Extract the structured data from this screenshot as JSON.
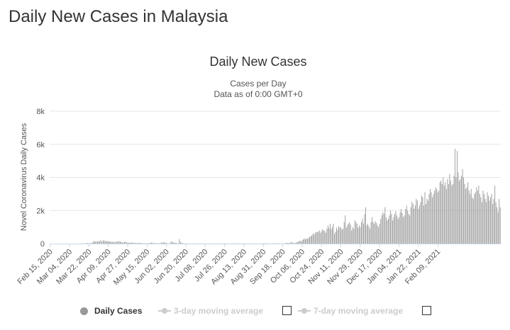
{
  "page": {
    "title": "Daily New Cases in Malaysia"
  },
  "legend": {
    "items": [
      {
        "label": "Daily Cases",
        "color": "#999999",
        "active": true
      },
      {
        "label": "3-day moving average",
        "color": "#cccccc",
        "active": false
      },
      {
        "label": "7-day moving average",
        "color": "#cccccc",
        "active": false
      }
    ]
  },
  "chart_data": {
    "type": "bar",
    "title": "Daily New Cases",
    "subtitle": [
      "Cases per Day",
      "Data as of 0:00 GMT+0"
    ],
    "ylabel": "Novel Coronavirus Daily Cases",
    "xlabel": "",
    "ylim": [
      0,
      8000
    ],
    "yticks": [
      0,
      2000,
      4000,
      6000,
      8000
    ],
    "ytick_labels": [
      "0",
      "2k",
      "4k",
      "6k",
      "8k"
    ],
    "grid": true,
    "bar_color": "#999999",
    "grid_color": "#e6e6e6",
    "x_start": "Feb 15, 2020",
    "x_end": "Feb 21, 2021",
    "xtick_labels": [
      "Feb 15, 2020",
      "Mar 04, 2020",
      "Mar 22, 2020",
      "Apr 09, 2020",
      "Apr 27, 2020",
      "May 15, 2020",
      "Jun 02, 2020",
      "Jun 20, 2020",
      "Jul 08, 2020",
      "Jul 26, 2020",
      "Aug 13, 2020",
      "Aug 31, 2020",
      "Sep 18, 2020",
      "Oct 06, 2020",
      "Oct 24, 2020",
      "Nov 11, 2020",
      "Nov 29, 2020",
      "Dec 17, 2020",
      "Jan 04, 2021",
      "Jan 22, 2021",
      "Feb 09, 2021"
    ],
    "values": [
      0,
      0,
      0,
      0,
      0,
      0,
      0,
      0,
      0,
      0,
      0,
      0,
      0,
      0,
      0,
      0,
      0,
      0,
      0,
      0,
      0,
      0,
      0,
      0,
      0,
      0,
      0,
      0,
      7,
      0,
      2,
      14,
      10,
      5,
      25,
      45,
      3,
      30,
      16,
      53,
      125,
      150,
      110,
      130,
      140,
      153,
      123,
      212,
      106,
      172,
      235,
      130,
      159,
      150,
      140,
      142,
      117,
      100,
      105,
      120,
      73,
      90,
      140,
      110,
      150,
      130,
      95,
      60,
      87,
      80,
      110,
      70,
      60,
      50,
      40,
      57,
      80,
      40,
      30,
      50,
      30,
      45,
      20,
      50,
      40,
      30,
      25,
      15,
      20,
      10,
      15,
      20,
      30,
      40,
      60,
      50,
      40,
      20,
      30,
      20,
      15,
      10,
      37,
      50,
      60,
      70,
      90,
      50,
      30,
      20,
      10,
      5,
      100,
      120,
      80,
      50,
      60,
      30,
      20,
      10,
      277,
      100,
      50,
      25,
      15,
      10,
      8,
      5,
      6,
      10,
      8,
      5,
      7,
      10,
      5,
      8,
      6,
      5,
      10,
      8,
      5,
      6,
      7,
      5,
      4,
      5,
      6,
      7,
      8,
      6,
      5,
      4,
      3,
      5,
      6,
      7,
      5,
      4,
      6,
      8,
      10,
      12,
      15,
      10,
      8,
      5,
      6,
      7,
      8,
      10,
      12,
      15,
      10,
      8,
      7,
      6,
      8,
      10,
      12,
      11,
      10,
      9,
      8,
      7,
      6,
      5,
      7,
      9,
      10,
      11,
      12,
      10,
      9,
      8,
      7,
      6,
      9,
      11,
      13,
      15,
      14,
      12,
      10,
      8,
      6,
      5,
      7,
      9,
      11,
      13,
      15,
      14,
      12,
      10,
      8,
      6,
      5,
      10,
      20,
      30,
      50,
      40,
      25,
      62,
      100,
      60,
      40,
      30,
      50,
      80,
      100,
      150,
      180,
      120,
      200,
      250,
      300,
      260,
      317,
      280,
      350,
      400,
      450,
      500,
      600,
      550,
      640,
      700,
      690,
      720,
      800,
      650,
      750,
      870,
      800,
      760,
      650,
      901,
      1100,
      950,
      1200,
      870,
      1000,
      1189,
      600,
      710,
      955,
      830,
      1050,
      1000,
      960,
      850,
      900,
      1300,
      1700,
      970,
      1100,
      1200,
      1290,
      1150,
      800,
      1000,
      900,
      1400,
      1300,
      1200,
      950,
      1100,
      1000,
      1300,
      1500,
      1210,
      1780,
      2188,
      1100,
      1200,
      1050,
      900,
      1300,
      1600,
      1300,
      1200,
      1350,
      1250,
      1100,
      1000,
      1200,
      1500,
      1700,
      1900,
      1800,
      2200,
      1600,
      1400,
      1500,
      1700,
      2000,
      1800,
      1400,
      1600,
      1800,
      1950,
      1700,
      1500,
      1600,
      1900,
      2100,
      1850,
      1600,
      1700,
      2100,
      2300,
      2000,
      1800,
      1700,
      2200,
      2525,
      2400,
      2100,
      2300,
      2700,
      2600,
      2100,
      2300,
      2500,
      2900,
      2800,
      2300,
      3100,
      2400,
      2700,
      2600,
      3000,
      3300,
      3100,
      2800,
      3000,
      3200,
      3400,
      3300,
      3100,
      3200,
      3700,
      3800,
      3600,
      4000,
      3500,
      3700,
      3300,
      3900,
      3600,
      4200,
      3800,
      3500,
      3600,
      4100,
      5728,
      4000,
      5600,
      4300,
      3800,
      3900,
      4100,
      4500,
      4000,
      3600,
      3300,
      3400,
      3700,
      3200,
      3000,
      3300,
      2800,
      2700,
      3000,
      3100,
      3400,
      3200,
      3500,
      3000,
      2800,
      2500,
      3200,
      3000,
      2700,
      2500,
      3100,
      2900,
      2600,
      2800,
      3000,
      2400,
      2700,
      3500,
      2500,
      2200,
      1900,
      2700,
      2200
    ]
  }
}
